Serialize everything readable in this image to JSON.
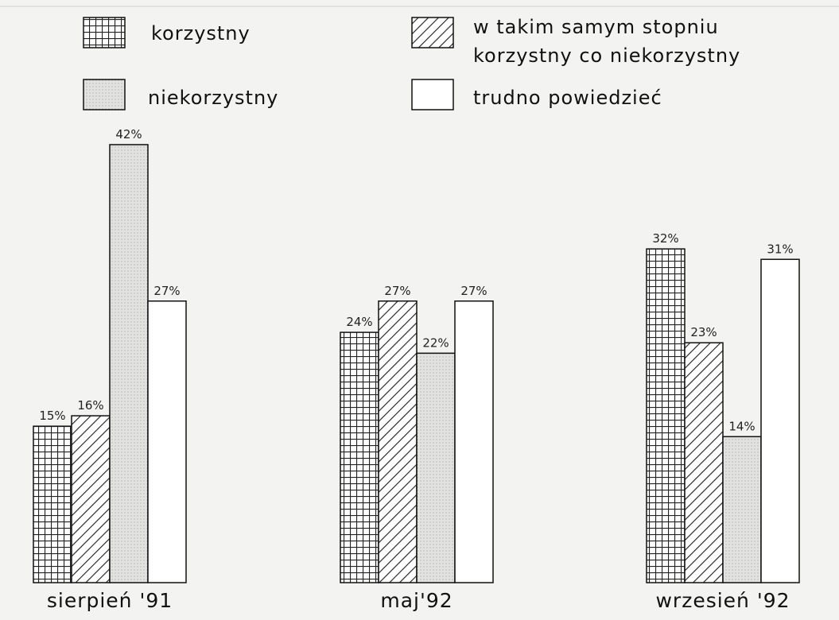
{
  "chart_data": {
    "type": "bar",
    "categories": [
      "sierpień '91",
      "maj'92",
      "wrzesień '92"
    ],
    "series": [
      {
        "name": "korzystny",
        "color": "#ffffff",
        "pattern": "grid",
        "values": [
          15,
          24,
          32
        ],
        "value_labels": [
          "15%",
          "24%",
          "32%"
        ]
      },
      {
        "name": "w takim samym stopniu korzystny co niekorzystny",
        "color": "#ffffff",
        "pattern": "hatch",
        "values": [
          16,
          27,
          23
        ],
        "value_labels": [
          "16%",
          "27%",
          "23%"
        ]
      },
      {
        "name": "niekorzystny",
        "color": "#e2e2e0",
        "pattern": "dots",
        "values": [
          42,
          22,
          14
        ],
        "value_labels": [
          "42%",
          "22%",
          "14%"
        ]
      },
      {
        "name": "trudno powiedzieć",
        "color": "#ffffff",
        "pattern": "none",
        "values": [
          27,
          27,
          31
        ],
        "value_labels": [
          "27%",
          "27%",
          "31%"
        ]
      }
    ]
  }
}
